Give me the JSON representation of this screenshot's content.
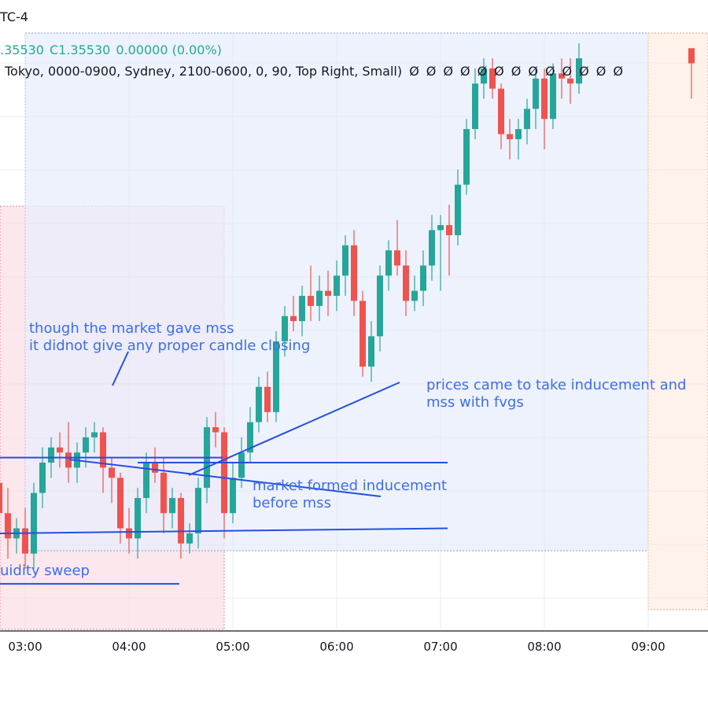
{
  "header": {
    "timezone_fragment": "TC-4",
    "ohlc": {
      "open_fragment": ".35530",
      "close_label": "C",
      "close_value": "1.35530",
      "change": "0.00000 (0.00%)"
    },
    "indicator_settings": "Tokyo, 0000-0900, Sydney, 2100-0600, 0, 90, Top Right, Small)",
    "indicator_values": [
      "Ø",
      "Ø",
      "Ø",
      "Ø",
      "Ø",
      "Ø",
      "Ø",
      "Ø",
      "Ø",
      "Ø",
      "Ø",
      "Ø",
      "Ø"
    ]
  },
  "annotations": {
    "mss_note_line1": "though the market gave mss",
    "mss_note_line2": "it didnot give any proper candle closing",
    "inducement_note_line1": "prices came to take inducement and",
    "inducement_note_line2": "mss with fvgs",
    "formed_note_line1": "market formed inducement",
    "formed_note_line2": "before mss",
    "sweep_note": "uidity sweep"
  },
  "colors": {
    "bull": "#26a69a",
    "bear": "#ef5350",
    "annotation": "#3e6ee8",
    "session_blue": "#e8eefc",
    "session_pink": "#fce4ea",
    "session_orange": "#fdeee4"
  },
  "chart_data": {
    "type": "candlestick",
    "x_ticks": [
      "03:00",
      "04:00",
      "05:00",
      "06:00",
      "07:00",
      "08:00",
      "09:00"
    ],
    "sessions": [
      {
        "start": "02:45",
        "end": "04:55",
        "kind": "pink"
      },
      {
        "start": "03:00",
        "end": "09:00",
        "kind": "blue"
      },
      {
        "start": "09:00",
        "end": "09:35",
        "kind": "orange"
      }
    ],
    "candles": [
      {
        "t": "02:45",
        "o": 1.3514,
        "h": 1.3517,
        "l": 1.3505,
        "c": 1.3508
      },
      {
        "t": "02:50",
        "o": 1.3508,
        "h": 1.3513,
        "l": 1.3499,
        "c": 1.3503
      },
      {
        "t": "02:55",
        "o": 1.3503,
        "h": 1.3507,
        "l": 1.35,
        "c": 1.3505
      },
      {
        "t": "03:00",
        "o": 1.3505,
        "h": 1.3509,
        "l": 1.3497,
        "c": 1.35
      },
      {
        "t": "03:05",
        "o": 1.35,
        "h": 1.3514,
        "l": 1.3497,
        "c": 1.3512
      },
      {
        "t": "03:10",
        "o": 1.3512,
        "h": 1.3521,
        "l": 1.3509,
        "c": 1.3518
      },
      {
        "t": "03:15",
        "o": 1.3518,
        "h": 1.3523,
        "l": 1.3515,
        "c": 1.3521
      },
      {
        "t": "03:20",
        "o": 1.3521,
        "h": 1.3524,
        "l": 1.3517,
        "c": 1.352
      },
      {
        "t": "03:25",
        "o": 1.352,
        "h": 1.3526,
        "l": 1.3514,
        "c": 1.3517
      },
      {
        "t": "03:30",
        "o": 1.3517,
        "h": 1.3522,
        "l": 1.3514,
        "c": 1.352
      },
      {
        "t": "03:35",
        "o": 1.352,
        "h": 1.3525,
        "l": 1.3517,
        "c": 1.3523
      },
      {
        "t": "03:40",
        "o": 1.3523,
        "h": 1.3526,
        "l": 1.352,
        "c": 1.3524
      },
      {
        "t": "03:45",
        "o": 1.3524,
        "h": 1.3525,
        "l": 1.3512,
        "c": 1.3517
      },
      {
        "t": "03:50",
        "o": 1.3517,
        "h": 1.3519,
        "l": 1.351,
        "c": 1.3515
      },
      {
        "t": "03:55",
        "o": 1.3515,
        "h": 1.3516,
        "l": 1.3502,
        "c": 1.3505
      },
      {
        "t": "04:00",
        "o": 1.3505,
        "h": 1.3509,
        "l": 1.35,
        "c": 1.3503
      },
      {
        "t": "04:05",
        "o": 1.3503,
        "h": 1.3513,
        "l": 1.3499,
        "c": 1.3511
      },
      {
        "t": "04:10",
        "o": 1.3511,
        "h": 1.352,
        "l": 1.3508,
        "c": 1.3518
      },
      {
        "t": "04:15",
        "o": 1.3518,
        "h": 1.3521,
        "l": 1.3514,
        "c": 1.3516
      },
      {
        "t": "04:20",
        "o": 1.3516,
        "h": 1.3519,
        "l": 1.3504,
        "c": 1.3508
      },
      {
        "t": "04:25",
        "o": 1.3508,
        "h": 1.3513,
        "l": 1.3505,
        "c": 1.3511
      },
      {
        "t": "04:30",
        "o": 1.3511,
        "h": 1.3512,
        "l": 1.3499,
        "c": 1.3502
      },
      {
        "t": "04:35",
        "o": 1.3502,
        "h": 1.3506,
        "l": 1.35,
        "c": 1.3504
      },
      {
        "t": "04:40",
        "o": 1.3504,
        "h": 1.3515,
        "l": 1.3501,
        "c": 1.3513
      },
      {
        "t": "04:45",
        "o": 1.3513,
        "h": 1.3527,
        "l": 1.351,
        "c": 1.3525
      },
      {
        "t": "04:50",
        "o": 1.3525,
        "h": 1.3528,
        "l": 1.3521,
        "c": 1.3524
      },
      {
        "t": "04:55",
        "o": 1.3524,
        "h": 1.3525,
        "l": 1.3503,
        "c": 1.3508
      },
      {
        "t": "05:00",
        "o": 1.3508,
        "h": 1.3518,
        "l": 1.3506,
        "c": 1.3515
      },
      {
        "t": "05:05",
        "o": 1.3515,
        "h": 1.3523,
        "l": 1.3513,
        "c": 1.352
      },
      {
        "t": "05:10",
        "o": 1.352,
        "h": 1.3529,
        "l": 1.3518,
        "c": 1.3526
      },
      {
        "t": "05:15",
        "o": 1.3526,
        "h": 1.3535,
        "l": 1.3524,
        "c": 1.3533
      },
      {
        "t": "05:20",
        "o": 1.3533,
        "h": 1.3536,
        "l": 1.3526,
        "c": 1.3528
      },
      {
        "t": "05:25",
        "o": 1.3528,
        "h": 1.3544,
        "l": 1.3526,
        "c": 1.3542
      },
      {
        "t": "05:30",
        "o": 1.3542,
        "h": 1.3549,
        "l": 1.3539,
        "c": 1.3547
      },
      {
        "t": "05:35",
        "o": 1.3547,
        "h": 1.3551,
        "l": 1.3544,
        "c": 1.3546
      },
      {
        "t": "05:40",
        "o": 1.3546,
        "h": 1.3553,
        "l": 1.3543,
        "c": 1.3551
      },
      {
        "t": "05:45",
        "o": 1.3551,
        "h": 1.3557,
        "l": 1.3546,
        "c": 1.3549
      },
      {
        "t": "05:50",
        "o": 1.3549,
        "h": 1.3555,
        "l": 1.3546,
        "c": 1.3552
      },
      {
        "t": "05:55",
        "o": 1.3552,
        "h": 1.3556,
        "l": 1.3547,
        "c": 1.3551
      },
      {
        "t": "06:00",
        "o": 1.3551,
        "h": 1.3558,
        "l": 1.3548,
        "c": 1.3555
      },
      {
        "t": "06:05",
        "o": 1.3555,
        "h": 1.3563,
        "l": 1.3551,
        "c": 1.3561
      },
      {
        "t": "06:10",
        "o": 1.3561,
        "h": 1.3564,
        "l": 1.3547,
        "c": 1.355
      },
      {
        "t": "06:15",
        "o": 1.355,
        "h": 1.3552,
        "l": 1.3535,
        "c": 1.3537
      },
      {
        "t": "06:20",
        "o": 1.3537,
        "h": 1.3546,
        "l": 1.3534,
        "c": 1.3543
      },
      {
        "t": "06:25",
        "o": 1.3543,
        "h": 1.3557,
        "l": 1.354,
        "c": 1.3555
      },
      {
        "t": "06:30",
        "o": 1.3555,
        "h": 1.3562,
        "l": 1.3552,
        "c": 1.356
      },
      {
        "t": "06:35",
        "o": 1.356,
        "h": 1.3566,
        "l": 1.3555,
        "c": 1.3557
      },
      {
        "t": "06:40",
        "o": 1.3557,
        "h": 1.356,
        "l": 1.3547,
        "c": 1.355
      },
      {
        "t": "06:45",
        "o": 1.355,
        "h": 1.3555,
        "l": 1.3548,
        "c": 1.3552
      },
      {
        "t": "06:50",
        "o": 1.3552,
        "h": 1.356,
        "l": 1.3549,
        "c": 1.3557
      },
      {
        "t": "06:55",
        "o": 1.3557,
        "h": 1.3567,
        "l": 1.3554,
        "c": 1.3564
      },
      {
        "t": "07:00",
        "o": 1.3564,
        "h": 1.3567,
        "l": 1.3552,
        "c": 1.3565
      },
      {
        "t": "07:05",
        "o": 1.3565,
        "h": 1.3569,
        "l": 1.3555,
        "c": 1.3563
      },
      {
        "t": "07:10",
        "o": 1.3563,
        "h": 1.3576,
        "l": 1.3561,
        "c": 1.3573
      },
      {
        "t": "07:15",
        "o": 1.3573,
        "h": 1.3586,
        "l": 1.3571,
        "c": 1.3584
      },
      {
        "t": "07:20",
        "o": 1.3584,
        "h": 1.3596,
        "l": 1.3582,
        "c": 1.3593
      },
      {
        "t": "07:25",
        "o": 1.3593,
        "h": 1.3598,
        "l": 1.359,
        "c": 1.3596
      },
      {
        "t": "07:30",
        "o": 1.3596,
        "h": 1.3598,
        "l": 1.359,
        "c": 1.3592
      },
      {
        "t": "07:35",
        "o": 1.3592,
        "h": 1.3593,
        "l": 1.358,
        "c": 1.3583
      },
      {
        "t": "07:40",
        "o": 1.3583,
        "h": 1.3586,
        "l": 1.3578,
        "c": 1.3582
      },
      {
        "t": "07:45",
        "o": 1.3582,
        "h": 1.3586,
        "l": 1.3578,
        "c": 1.3584
      },
      {
        "t": "07:50",
        "o": 1.3584,
        "h": 1.359,
        "l": 1.3581,
        "c": 1.3588
      },
      {
        "t": "07:55",
        "o": 1.3588,
        "h": 1.3596,
        "l": 1.3584,
        "c": 1.3594
      },
      {
        "t": "08:00",
        "o": 1.3594,
        "h": 1.3596,
        "l": 1.358,
        "c": 1.3586
      },
      {
        "t": "08:05",
        "o": 1.3586,
        "h": 1.3597,
        "l": 1.3584,
        "c": 1.3595
      },
      {
        "t": "08:10",
        "o": 1.3595,
        "h": 1.3598,
        "l": 1.359,
        "c": 1.3594
      },
      {
        "t": "08:15",
        "o": 1.3594,
        "h": 1.3598,
        "l": 1.3589,
        "c": 1.3593
      },
      {
        "t": "08:20",
        "o": 1.3593,
        "h": 1.3601,
        "l": 1.3591,
        "c": 1.3598
      },
      {
        "t": "09:25",
        "o": 1.36,
        "h": 1.36,
        "l": 1.359,
        "c": 1.3597
      }
    ],
    "drawn_lines": [
      {
        "name": "inducement-high",
        "from": [
          "03:00",
          1.3519
        ],
        "to": [
          "04:45",
          1.3519
        ]
      },
      {
        "name": "mss-level",
        "from": [
          "04:05",
          1.3518
        ],
        "to": [
          "06:55",
          1.3518
        ]
      },
      {
        "name": "inducement-low",
        "from": [
          "03:00",
          1.3504
        ],
        "to": [
          "06:55",
          1.3505
        ]
      },
      {
        "name": "sweep-low",
        "from": [
          "02:45",
          1.3494
        ],
        "to": [
          "04:20",
          1.3494
        ]
      }
    ],
    "y_range": [
      1.3485,
      1.3603
    ]
  }
}
